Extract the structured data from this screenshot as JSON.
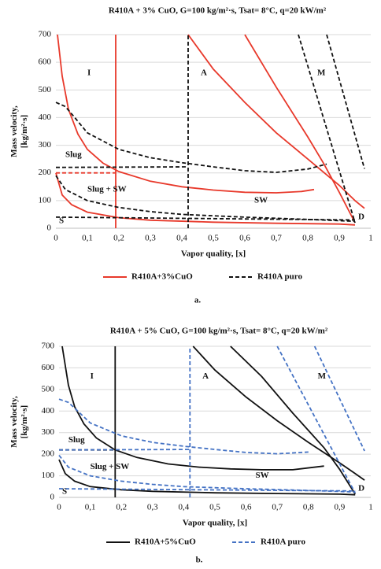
{
  "chart_data": [
    {
      "type": "line",
      "title": "R410A + 3% CuO, G=100 kg/m²·s, Tsat= 8°C, q=20 kW/m²",
      "x_label": "Vapor quality, [x]",
      "y_label": [
        "Mass velocity,",
        "[kg/m²·s]"
      ],
      "caption": "a.",
      "xlim": [
        0,
        1
      ],
      "ylim": [
        0,
        700
      ],
      "xticks": [
        0,
        {
          "value": 0.1,
          "label": "0,1"
        },
        {
          "value": 0.2,
          "label": "0,2"
        },
        {
          "value": 0.3,
          "label": "0,3"
        },
        {
          "value": 0.4,
          "label": "0,4"
        },
        {
          "value": 0.5,
          "label": "0,5"
        },
        {
          "value": 0.6,
          "label": "0,6"
        },
        {
          "value": 0.7,
          "label": "0,7"
        },
        {
          "value": 0.8,
          "label": "0,8"
        },
        {
          "value": 0.9,
          "label": "0,9"
        },
        1
      ],
      "yticks": [
        0,
        100,
        200,
        300,
        400,
        500,
        600,
        700
      ],
      "grid": true,
      "annotations": [
        "I",
        "A",
        "M",
        "Slug",
        "Slug + SW",
        "SW",
        "S",
        "D"
      ],
      "series": [
        {
          "name": "R410A+3%CuO",
          "color": "#e8392b",
          "dashed": false,
          "curves": [
            {
              "x": [
                0.19,
                0.19
              ],
              "values": [
                0,
                700
              ]
            },
            {
              "x": [
                0,
                0.19
              ],
              "values": [
                200,
                200
              ],
              "dashed": true
            },
            {
              "x": [
                0.005,
                0.02,
                0.04,
                0.07,
                0.1,
                0.15,
                0.2,
                0.3,
                0.4,
                0.5,
                0.6,
                0.7,
                0.78,
                0.82
              ],
              "values": [
                700,
                550,
                430,
                340,
                285,
                235,
                205,
                170,
                150,
                138,
                130,
                128,
                133,
                140
              ]
            },
            {
              "x": [
                0,
                0.02,
                0.05,
                0.1,
                0.2,
                0.3,
                0.5,
                0.7,
                0.9,
                0.95
              ],
              "values": [
                200,
                120,
                85,
                58,
                38,
                29,
                22,
                18,
                15,
                12
              ]
            },
            {
              "x": [
                0.42,
                0.5,
                0.6,
                0.7,
                0.8,
                0.9,
                0.95,
                0.98
              ],
              "values": [
                700,
                575,
                455,
                345,
                250,
                155,
                100,
                72
              ]
            },
            {
              "x": [
                0.6,
                0.7,
                0.8,
                0.85,
                0.9,
                0.95
              ],
              "values": [
                700,
                510,
                330,
                235,
                130,
                20
              ]
            }
          ]
        },
        {
          "name": "R410A puro",
          "color": "#111111",
          "dashed": true,
          "curves": [
            {
              "x": [
                0.42,
                0.42
              ],
              "values": [
                0,
                700
              ]
            },
            {
              "x": [
                0,
                0.42
              ],
              "values": [
                220,
                222
              ]
            },
            {
              "x": [
                0,
                0.03,
                0.06,
                0.1,
                0.2,
                0.3,
                0.4,
                0.5,
                0.6,
                0.7,
                0.8,
                0.86
              ],
              "values": [
                455,
                440,
                400,
                345,
                285,
                255,
                237,
                222,
                208,
                202,
                214,
                232
              ]
            },
            {
              "x": [
                0,
                0.03,
                0.1,
                0.2,
                0.3,
                0.4,
                0.5,
                0.6,
                0.8,
                0.95
              ],
              "values": [
                190,
                140,
                100,
                75,
                60,
                50,
                45,
                40,
                32,
                25
              ]
            },
            {
              "x": [
                0,
                0.95
              ],
              "values": [
                40,
                30
              ]
            },
            {
              "x": [
                0.77,
                0.95
              ],
              "values": [
                700,
                20
              ]
            },
            {
              "x": [
                0.86,
                0.98
              ],
              "values": [
                700,
                215
              ]
            }
          ]
        }
      ]
    },
    {
      "type": "line",
      "title": "R410A + 5% CuO, G=100 kg/m²·s, Tsat= 8°C, q=20 kW/m²",
      "x_label": "Vapor quality, [x]",
      "y_label": [
        "Mass velocity,",
        "[kg/m²·s]"
      ],
      "caption": "b.",
      "xlim": [
        0,
        1
      ],
      "ylim": [
        0,
        700
      ],
      "xticks": [
        0,
        {
          "value": 0.1,
          "label": "0,1"
        },
        {
          "value": 0.2,
          "label": "0,2"
        },
        {
          "value": 0.3,
          "label": "0,3"
        },
        {
          "value": 0.4,
          "label": "0,4"
        },
        {
          "value": 0.5,
          "label": "0,5"
        },
        {
          "value": 0.6,
          "label": "0,6"
        },
        {
          "value": 0.7,
          "label": "0,7"
        },
        {
          "value": 0.8,
          "label": "0,8"
        },
        {
          "value": 0.9,
          "label": "0,9"
        },
        1
      ],
      "yticks": [
        0,
        100,
        200,
        300,
        400,
        500,
        600,
        700
      ],
      "grid": true,
      "annotations": [
        "I",
        "A",
        "M",
        "Slug",
        "Slug + SW",
        "SW",
        "S",
        "D"
      ],
      "series": [
        {
          "name": "R410A+5%CuO",
          "color": "#111111",
          "dashed": false,
          "curves": [
            {
              "x": [
                0.18,
                0.18
              ],
              "values": [
                0,
                700
              ]
            },
            {
              "x": [
                0,
                0.18
              ],
              "values": [
                220,
                220
              ],
              "dashed": true
            },
            {
              "x": [
                0.01,
                0.03,
                0.05,
                0.08,
                0.12,
                0.18,
                0.25,
                0.35,
                0.45,
                0.55,
                0.65,
                0.75,
                0.85
              ],
              "values": [
                700,
                520,
                420,
                340,
                275,
                220,
                185,
                155,
                140,
                132,
                128,
                128,
                145
              ]
            },
            {
              "x": [
                0,
                0.02,
                0.05,
                0.1,
                0.2,
                0.3,
                0.5,
                0.7,
                0.9,
                0.95
              ],
              "values": [
                175,
                110,
                75,
                50,
                35,
                28,
                21,
                18,
                15,
                12
              ]
            },
            {
              "x": [
                0.43,
                0.5,
                0.6,
                0.7,
                0.8,
                0.9,
                0.95,
                0.98
              ],
              "values": [
                700,
                590,
                465,
                355,
                255,
                160,
                110,
                80
              ]
            },
            {
              "x": [
                0.55,
                0.65,
                0.75,
                0.85,
                0.9,
                0.95
              ],
              "values": [
                700,
                560,
                390,
                230,
                130,
                15
              ]
            }
          ]
        },
        {
          "name": "R410A puro",
          "color": "#4472c4",
          "dashed": true,
          "curves": [
            {
              "x": [
                0.42,
                0.42
              ],
              "values": [
                0,
                700
              ]
            },
            {
              "x": [
                0,
                0.42
              ],
              "values": [
                220,
                222
              ]
            },
            {
              "x": [
                0,
                0.03,
                0.06,
                0.1,
                0.2,
                0.3,
                0.4,
                0.5,
                0.6,
                0.7,
                0.8
              ],
              "values": [
                455,
                440,
                400,
                345,
                285,
                255,
                237,
                222,
                208,
                202,
                210
              ]
            },
            {
              "x": [
                0,
                0.03,
                0.1,
                0.2,
                0.3,
                0.4,
                0.5,
                0.6,
                0.8,
                0.95
              ],
              "values": [
                195,
                140,
                100,
                75,
                60,
                50,
                45,
                40,
                32,
                25
              ]
            },
            {
              "x": [
                0,
                0.95
              ],
              "values": [
                40,
                30
              ]
            },
            {
              "x": [
                0.7,
                0.95
              ],
              "values": [
                700,
                20
              ]
            },
            {
              "x": [
                0.82,
                0.98
              ],
              "values": [
                700,
                215
              ]
            }
          ]
        }
      ]
    }
  ]
}
